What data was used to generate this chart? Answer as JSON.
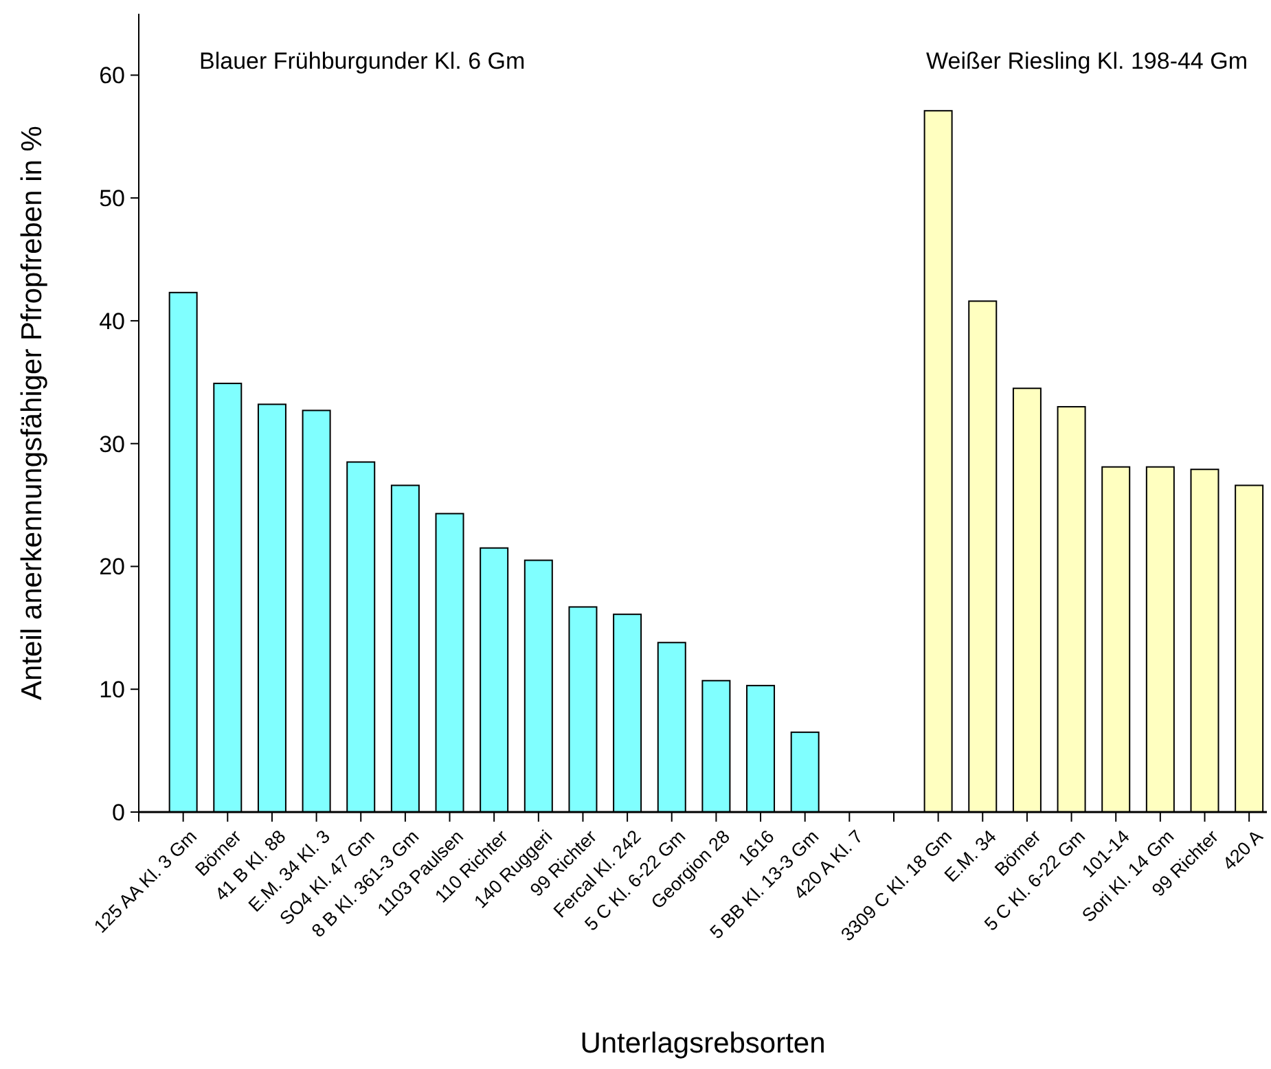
{
  "chart_data": {
    "type": "bar",
    "xlabel": "Unterlagsrebsorten",
    "ylabel": "Anteil anerkennungsfähiger Pfropfreben in %",
    "categories": [
      "125 AA Kl. 3 Gm",
      "Börner",
      "41 B Kl. 88",
      "E.M. 34 Kl. 3",
      "SO4 Kl. 47 Gm",
      "8 B Kl. 361-3 Gm",
      "1103 Paulsen",
      "110 Richter",
      "140 Ruggeri",
      "99 Richter",
      "Fercal Kl. 242",
      "5 C Kl. 6-22 Gm",
      "Georgion 28",
      "1616",
      "5 BB Kl. 13-3 Gm",
      "420 A Kl. 7",
      null,
      "3309 C Kl. 18 Gm",
      "E.M. 34",
      "Börner",
      "5 C Kl. 6-22 Gm",
      "101-14",
      "Sori Kl. 14 Gm",
      "99 Richter",
      "420 A"
    ],
    "series": [
      {
        "color": "#80ffff",
        "values": [
          42.3,
          34.9,
          33.2,
          32.7,
          28.5,
          26.6,
          24.3,
          21.5,
          20.5,
          16.7,
          16.1,
          13.8,
          10.7,
          10.3,
          6.5,
          0,
          null,
          null,
          null,
          null,
          null,
          null,
          null,
          null,
          null
        ]
      },
      {
        "color": "#ffffc0",
        "values": [
          null,
          null,
          null,
          null,
          null,
          null,
          null,
          null,
          null,
          null,
          null,
          null,
          null,
          null,
          null,
          null,
          null,
          57.1,
          41.6,
          34.5,
          33.0,
          28.1,
          28.1,
          27.9,
          26.6
        ]
      }
    ],
    "ylim": [
      0,
      65
    ],
    "yticks": [
      0,
      10,
      20,
      30,
      40,
      50,
      60
    ],
    "grid": false,
    "annotations": [
      "Blauer Frühburgunder Kl. 6 Gm",
      "Weißer Riesling Kl. 198-44 Gm"
    ]
  }
}
